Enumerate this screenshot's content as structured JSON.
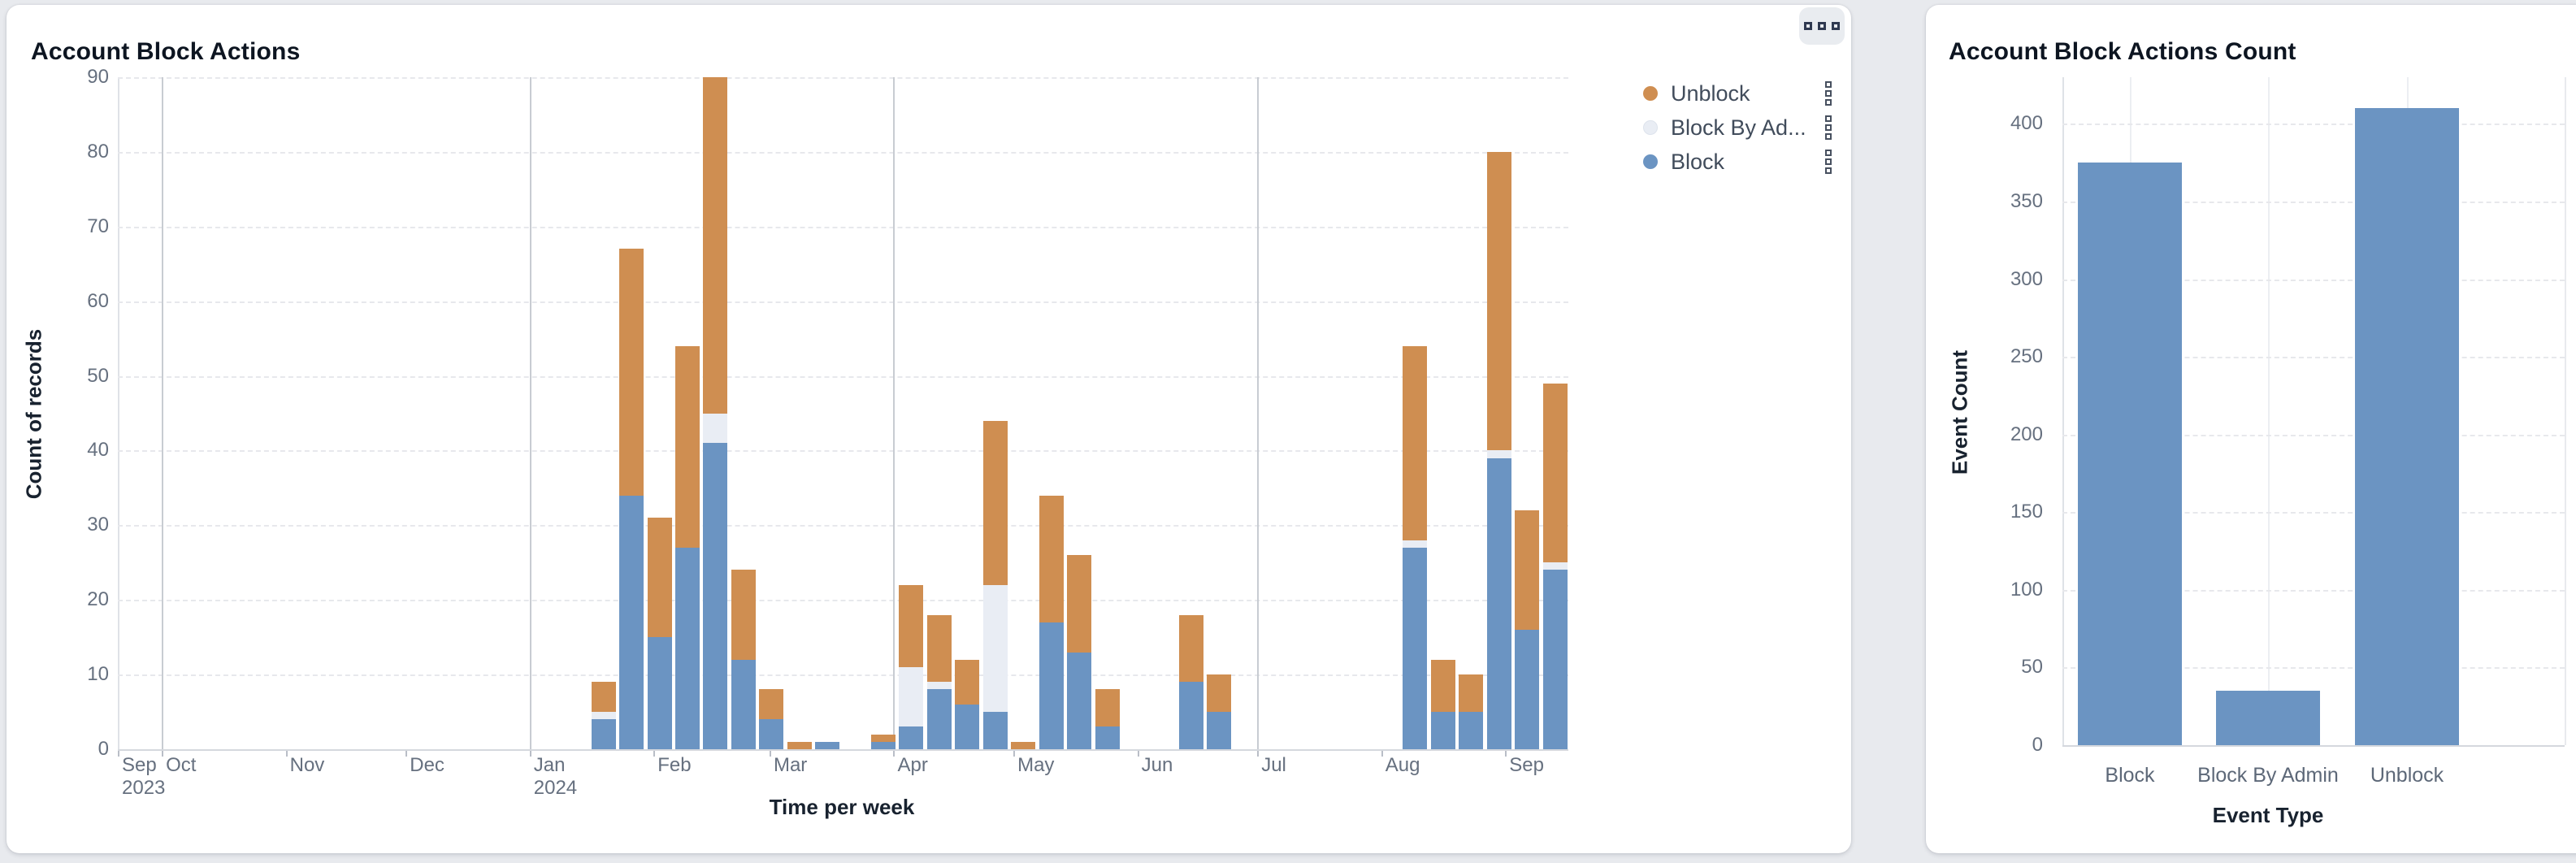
{
  "page": {
    "background": "#e8eaee"
  },
  "left_panel": {
    "title": "Account Block Actions",
    "more_button": {
      "icon": "squares-ellipsis-icon"
    },
    "legend": [
      {
        "label": "Unblock",
        "color": "#cf8e51",
        "menu_icon": "kebab-squares-icon"
      },
      {
        "label": "Block By Ad...",
        "color": "#e9edf4",
        "menu_icon": "kebab-squares-icon"
      },
      {
        "label": "Block",
        "color": "#6b94c2",
        "menu_icon": "kebab-squares-icon"
      }
    ],
    "chart_data": {
      "type": "bar",
      "stacked": true,
      "title": "Account Block Actions",
      "xlabel": "Time per week",
      "ylabel": "Count of records",
      "ylim": [
        0,
        90
      ],
      "yticks": [
        0,
        10,
        20,
        30,
        40,
        50,
        60,
        70,
        80,
        90
      ],
      "grid": true,
      "legend_position": "right",
      "x_axis_start": "2023-09-20",
      "x_axis_end": "2024-09-16",
      "stack_order": [
        "Block",
        "Block By Admin",
        "Unblock"
      ],
      "series_colors": {
        "Block": "#6b94c2",
        "Block By Admin": "#e9edf4",
        "Unblock": "#cf8e51"
      },
      "month_ticks": [
        {
          "label": "Sep",
          "year": "2023",
          "date": "2023-09-20"
        },
        {
          "label": "Oct",
          "date": "2023-10-01"
        },
        {
          "label": "Nov",
          "date": "2023-11-01"
        },
        {
          "label": "Dec",
          "date": "2023-12-01"
        },
        {
          "label": "Jan",
          "year": "2024",
          "date": "2024-01-01"
        },
        {
          "label": "Feb",
          "date": "2024-02-01"
        },
        {
          "label": "Mar",
          "date": "2024-03-01"
        },
        {
          "label": "Apr",
          "date": "2024-04-01"
        },
        {
          "label": "May",
          "date": "2024-05-01"
        },
        {
          "label": "Jun",
          "date": "2024-06-01"
        },
        {
          "label": "Jul",
          "date": "2024-07-01"
        },
        {
          "label": "Aug",
          "date": "2024-08-01"
        },
        {
          "label": "Sep",
          "date": "2024-09-01"
        }
      ],
      "weeks": [
        {
          "week": "2024-01-15",
          "Block": 4,
          "Block By Admin": 1,
          "Unblock": 4
        },
        {
          "week": "2024-01-22",
          "Block": 34,
          "Block By Admin": 0,
          "Unblock": 33
        },
        {
          "week": "2024-01-29",
          "Block": 15,
          "Block By Admin": 0,
          "Unblock": 16
        },
        {
          "week": "2024-02-05",
          "Block": 27,
          "Block By Admin": 0,
          "Unblock": 27
        },
        {
          "week": "2024-02-12",
          "Block": 41,
          "Block By Admin": 4,
          "Unblock": 45
        },
        {
          "week": "2024-02-19",
          "Block": 12,
          "Block By Admin": 0,
          "Unblock": 12
        },
        {
          "week": "2024-02-26",
          "Block": 4,
          "Block By Admin": 0,
          "Unblock": 4
        },
        {
          "week": "2024-03-04",
          "Block": 0,
          "Block By Admin": 0,
          "Unblock": 1
        },
        {
          "week": "2024-03-11",
          "Block": 1,
          "Block By Admin": 0,
          "Unblock": 0
        },
        {
          "week": "2024-03-25",
          "Block": 1,
          "Block By Admin": 0,
          "Unblock": 1
        },
        {
          "week": "2024-04-01",
          "Block": 3,
          "Block By Admin": 8,
          "Unblock": 11
        },
        {
          "week": "2024-04-08",
          "Block": 8,
          "Block By Admin": 1,
          "Unblock": 9
        },
        {
          "week": "2024-04-15",
          "Block": 6,
          "Block By Admin": 0,
          "Unblock": 6
        },
        {
          "week": "2024-04-22",
          "Block": 5,
          "Block By Admin": 17,
          "Unblock": 22
        },
        {
          "week": "2024-04-29",
          "Block": 0,
          "Block By Admin": 0,
          "Unblock": 1
        },
        {
          "week": "2024-05-06",
          "Block": 17,
          "Block By Admin": 0,
          "Unblock": 17
        },
        {
          "week": "2024-05-13",
          "Block": 13,
          "Block By Admin": 0,
          "Unblock": 13
        },
        {
          "week": "2024-05-20",
          "Block": 3,
          "Block By Admin": 0,
          "Unblock": 5
        },
        {
          "week": "2024-06-10",
          "Block": 9,
          "Block By Admin": 0,
          "Unblock": 9
        },
        {
          "week": "2024-06-17",
          "Block": 5,
          "Block By Admin": 0,
          "Unblock": 5
        },
        {
          "week": "2024-08-05",
          "Block": 27,
          "Block By Admin": 1,
          "Unblock": 26
        },
        {
          "week": "2024-08-12",
          "Block": 5,
          "Block By Admin": 0,
          "Unblock": 7
        },
        {
          "week": "2024-08-19",
          "Block": 5,
          "Block By Admin": 0,
          "Unblock": 5
        },
        {
          "week": "2024-08-26",
          "Block": 39,
          "Block By Admin": 1,
          "Unblock": 40
        },
        {
          "week": "2024-09-02",
          "Block": 16,
          "Block By Admin": 0,
          "Unblock": 16
        },
        {
          "week": "2024-09-09",
          "Block": 24,
          "Block By Admin": 1,
          "Unblock": 24
        }
      ]
    }
  },
  "right_panel": {
    "title": "Account Block Actions Count",
    "chart_data": {
      "type": "bar",
      "title": "Account Block Actions Count",
      "categories": [
        "Block",
        "Block By Admin",
        "Unblock"
      ],
      "values": [
        375,
        35,
        410
      ],
      "xlabel": "Event Type",
      "ylabel": "Event Count",
      "ylim": [
        0,
        430
      ],
      "yticks": [
        0,
        50,
        100,
        150,
        200,
        250,
        300,
        350,
        400
      ],
      "grid": true,
      "bar_color": "#6b94c2"
    }
  }
}
